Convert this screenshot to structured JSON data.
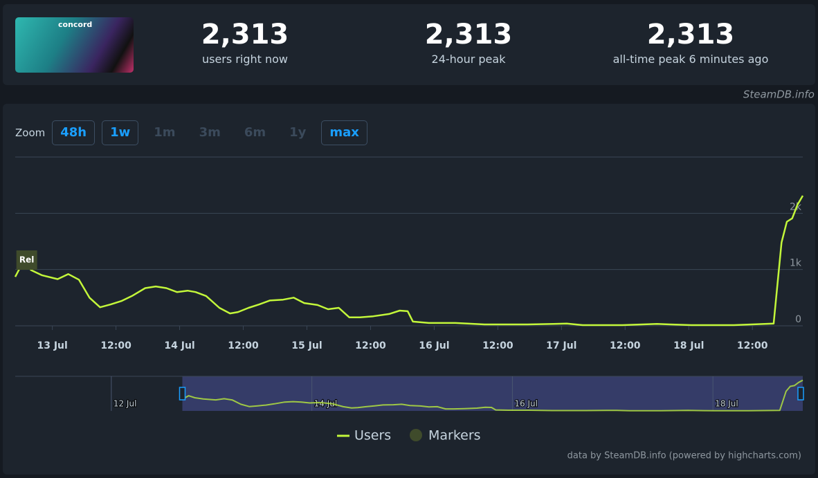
{
  "header": {
    "logo_text": "concord",
    "stats": [
      {
        "value": "2,313",
        "label": "users right now"
      },
      {
        "value": "2,313",
        "label": "24-hour peak"
      },
      {
        "value": "2,313",
        "label": "all-time peak 6 minutes ago"
      }
    ],
    "source": "SteamDB.info"
  },
  "zoom": {
    "label": "Zoom",
    "buttons": [
      {
        "label": "48h",
        "enabled": true
      },
      {
        "label": "1w",
        "enabled": true
      },
      {
        "label": "1m",
        "enabled": false
      },
      {
        "label": "3m",
        "enabled": false
      },
      {
        "label": "6m",
        "enabled": false
      },
      {
        "label": "1y",
        "enabled": false
      },
      {
        "label": "max",
        "enabled": true
      }
    ]
  },
  "chart_data": {
    "type": "line",
    "x": [
      "12 Jul 17:00",
      "12 Jul 18:30",
      "12 Jul 20:00",
      "12 Jul 22:00",
      "13 Jul 01:00",
      "13 Jul 03:00",
      "13 Jul 05:00",
      "13 Jul 07:00",
      "13 Jul 09:00",
      "13 Jul 11:00",
      "13 Jul 13:00",
      "13 Jul 15:00",
      "13 Jul 17:30",
      "13 Jul 19:30",
      "13 Jul 21:30",
      "13 Jul 23:30",
      "14 Jul 01:30",
      "14 Jul 03:00",
      "14 Jul 05:00",
      "14 Jul 07:30",
      "14 Jul 09:30",
      "14 Jul 11:00",
      "14 Jul 13:00",
      "14 Jul 15:00",
      "14 Jul 17:00",
      "14 Jul 19:30",
      "14 Jul 21:30",
      "14 Jul 23:30",
      "15 Jul 02:00",
      "15 Jul 04:00",
      "15 Jul 06:00",
      "15 Jul 08:00",
      "15 Jul 10:00",
      "15 Jul 12:30",
      "15 Jul 15:30",
      "15 Jul 17:30",
      "15 Jul 19:00",
      "15 Jul 20:00",
      "15 Jul 23:00",
      "16 Jul 04:00",
      "16 Jul 09:30",
      "16 Jul 17:30",
      "16 Jul 22:30",
      "17 Jul 01:00",
      "17 Jul 04:00",
      "17 Jul 11:30",
      "17 Jul 18:00",
      "17 Jul 20:30",
      "18 Jul 00:30",
      "18 Jul 08:30",
      "18 Jul 16:00",
      "18 Jul 17:30",
      "18 Jul 18:30",
      "18 Jul 19:30",
      "18 Jul 20:30",
      "18 Jul 21:30"
    ],
    "series": [
      {
        "name": "Users",
        "color": "#c3f73a",
        "values": [
          870,
          1140,
          990,
          900,
          830,
          920,
          820,
          500,
          330,
          380,
          440,
          530,
          670,
          700,
          670,
          600,
          625,
          600,
          530,
          320,
          220,
          245,
          320,
          380,
          450,
          465,
          500,
          405,
          370,
          295,
          320,
          150,
          150,
          170,
          210,
          270,
          260,
          75,
          50,
          50,
          25,
          25,
          35,
          40,
          12,
          12,
          35,
          25,
          12,
          12,
          40,
          1480,
          1850,
          1910,
          2150,
          2313
        ]
      }
    ],
    "markers": {
      "name": "Markers",
      "color": "#3f4b2b",
      "points": [
        {
          "x": "12 Jul 18:00",
          "label": "Rel"
        }
      ]
    },
    "xlim": [
      "12 Jul 17:00",
      "18 Jul 21:30"
    ],
    "xticks": [
      {
        "value": "13 Jul 00:00",
        "label": "13 Jul"
      },
      {
        "value": "13 Jul 12:00",
        "label": "12:00"
      },
      {
        "value": "14 Jul 00:00",
        "label": "14 Jul"
      },
      {
        "value": "14 Jul 12:00",
        "label": "12:00"
      },
      {
        "value": "15 Jul 00:00",
        "label": "15 Jul"
      },
      {
        "value": "15 Jul 12:00",
        "label": "12:00"
      },
      {
        "value": "16 Jul 00:00",
        "label": "16 Jul"
      },
      {
        "value": "16 Jul 12:00",
        "label": "12:00"
      },
      {
        "value": "17 Jul 00:00",
        "label": "17 Jul"
      },
      {
        "value": "17 Jul 12:00",
        "label": "12:00"
      },
      {
        "value": "18 Jul 00:00",
        "label": "18 Jul"
      },
      {
        "value": "18 Jul 12:00",
        "label": "12:00"
      }
    ],
    "ylim": [
      0,
      3000
    ],
    "yticks": [
      {
        "value": 0,
        "label": "0"
      },
      {
        "value": 1000,
        "label": "1k"
      },
      {
        "value": 2000,
        "label": "2k"
      }
    ],
    "grid": true,
    "navigator": {
      "xlim": [
        "11 Jul 01:00",
        "18 Jul 21:30"
      ],
      "ylim": [
        0,
        2400
      ],
      "xticks": [
        {
          "value": "12 Jul 00:00",
          "label": "12 Jul"
        },
        {
          "value": "14 Jul 00:00",
          "label": "14 Jul"
        },
        {
          "value": "16 Jul 00:00",
          "label": "16 Jul"
        },
        {
          "value": "18 Jul 00:00",
          "label": "18 Jul"
        }
      ]
    },
    "credits": "data by SteamDB.info (powered by highcharts.com)"
  }
}
